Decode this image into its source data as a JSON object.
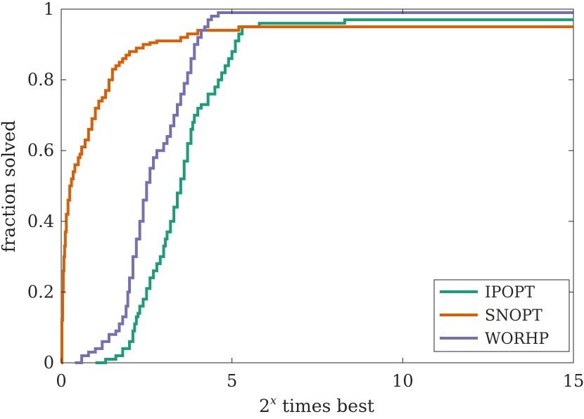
{
  "chart_data": {
    "type": "line",
    "title": "",
    "xlabel": "times best",
    "xlabel_base": "2",
    "xlabel_exp": "x",
    "ylabel": "fraction solved",
    "xlim": [
      0,
      15
    ],
    "ylim": [
      0,
      1
    ],
    "xticks": [
      0,
      5,
      10,
      15
    ],
    "xtick_labels": [
      "0",
      "5",
      "10",
      "15"
    ],
    "yticks": [
      0,
      0.2,
      0.4,
      0.6,
      0.8,
      1
    ],
    "ytick_labels": [
      "0",
      "0.2",
      "0.4",
      "0.6",
      "0.8",
      "1"
    ],
    "legend_position": "bottom-right",
    "series": [
      {
        "name": "IPOPT",
        "color": "#1b9e77",
        "x": [
          1.0,
          1.3,
          1.6,
          1.8,
          2.0,
          2.1,
          2.15,
          2.2,
          2.25,
          2.3,
          2.4,
          2.5,
          2.6,
          2.7,
          2.8,
          2.9,
          3.0,
          3.05,
          3.1,
          3.2,
          3.3,
          3.4,
          3.5,
          3.6,
          3.7,
          3.8,
          3.85,
          3.9,
          4.0,
          4.1,
          4.3,
          4.5,
          4.6,
          4.7,
          4.8,
          4.9,
          5.0,
          5.1,
          5.2,
          5.3,
          5.8,
          8.3,
          15.0
        ],
        "y": [
          0.0,
          0.01,
          0.02,
          0.04,
          0.06,
          0.09,
          0.11,
          0.13,
          0.14,
          0.16,
          0.18,
          0.21,
          0.24,
          0.26,
          0.28,
          0.3,
          0.33,
          0.35,
          0.37,
          0.4,
          0.44,
          0.48,
          0.52,
          0.57,
          0.62,
          0.66,
          0.68,
          0.7,
          0.72,
          0.73,
          0.76,
          0.78,
          0.8,
          0.82,
          0.84,
          0.86,
          0.88,
          0.91,
          0.93,
          0.95,
          0.96,
          0.97,
          0.97
        ]
      },
      {
        "name": "SNOPT",
        "color": "#d95f02",
        "x": [
          0.0,
          0.02,
          0.04,
          0.06,
          0.08,
          0.1,
          0.12,
          0.15,
          0.2,
          0.25,
          0.3,
          0.35,
          0.4,
          0.5,
          0.55,
          0.6,
          0.7,
          0.8,
          0.9,
          1.0,
          1.1,
          1.2,
          1.3,
          1.4,
          1.5,
          1.6,
          1.7,
          1.8,
          1.9,
          2.0,
          2.2,
          2.4,
          2.6,
          2.8,
          3.5,
          3.7,
          4.0,
          5.2,
          15.0
        ],
        "y": [
          0.0,
          0.12,
          0.2,
          0.26,
          0.3,
          0.33,
          0.37,
          0.42,
          0.46,
          0.5,
          0.52,
          0.54,
          0.56,
          0.58,
          0.59,
          0.61,
          0.63,
          0.66,
          0.69,
          0.72,
          0.74,
          0.75,
          0.77,
          0.8,
          0.83,
          0.84,
          0.85,
          0.86,
          0.87,
          0.88,
          0.89,
          0.9,
          0.905,
          0.91,
          0.92,
          0.93,
          0.94,
          0.95,
          0.95
        ]
      },
      {
        "name": "WORHP",
        "color": "#7570b3",
        "x": [
          0.4,
          0.6,
          0.8,
          1.0,
          1.2,
          1.4,
          1.6,
          1.7,
          1.8,
          1.9,
          1.95,
          2.0,
          2.1,
          2.2,
          2.3,
          2.4,
          2.5,
          2.6,
          2.7,
          2.8,
          3.0,
          3.1,
          3.2,
          3.3,
          3.4,
          3.5,
          3.6,
          3.7,
          3.8,
          3.9,
          4.0,
          4.1,
          4.2,
          4.3,
          4.4,
          4.6,
          15.0
        ],
        "y": [
          0.0,
          0.02,
          0.03,
          0.04,
          0.06,
          0.08,
          0.09,
          0.11,
          0.13,
          0.16,
          0.2,
          0.24,
          0.3,
          0.35,
          0.4,
          0.46,
          0.51,
          0.55,
          0.58,
          0.6,
          0.62,
          0.64,
          0.67,
          0.7,
          0.73,
          0.76,
          0.79,
          0.82,
          0.86,
          0.9,
          0.92,
          0.94,
          0.95,
          0.97,
          0.98,
          0.99,
          0.99
        ]
      }
    ]
  }
}
